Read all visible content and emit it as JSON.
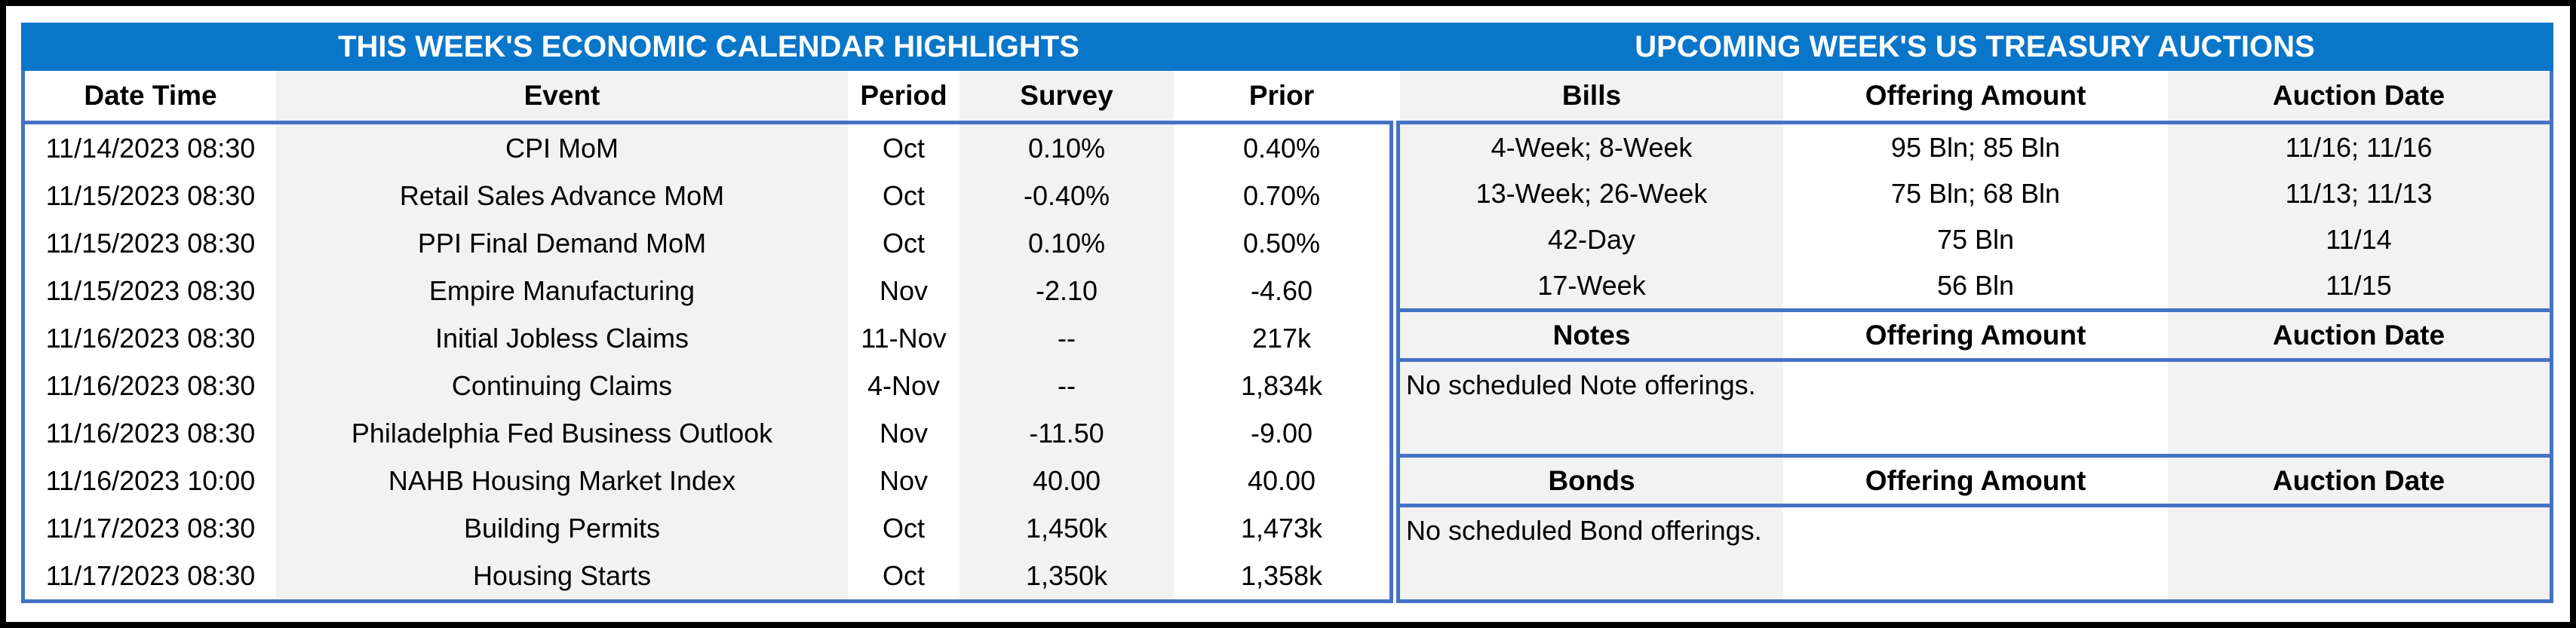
{
  "colors": {
    "title_band_blue": "#0a76c9",
    "table_border_blue": "#4472c4",
    "stripe_gray": "#f2f2f2",
    "frame_black": "#000000"
  },
  "left_table": {
    "title": "THIS WEEK'S ECONOMIC CALENDAR HIGHLIGHTS",
    "columns": [
      "Date Time",
      "Event",
      "Period",
      "Survey",
      "Prior"
    ],
    "rows": [
      [
        "11/14/2023 08:30",
        "CPI MoM",
        "Oct",
        "0.10%",
        "0.40%"
      ],
      [
        "11/15/2023 08:30",
        "Retail Sales Advance MoM",
        "Oct",
        "-0.40%",
        "0.70%"
      ],
      [
        "11/15/2023 08:30",
        "PPI Final Demand MoM",
        "Oct",
        "0.10%",
        "0.50%"
      ],
      [
        "11/15/2023 08:30",
        "Empire Manufacturing",
        "Nov",
        "-2.10",
        "-4.60"
      ],
      [
        "11/16/2023 08:30",
        "Initial Jobless Claims",
        "11-Nov",
        "--",
        "217k"
      ],
      [
        "11/16/2023 08:30",
        "Continuing Claims",
        "4-Nov",
        "--",
        "1,834k"
      ],
      [
        "11/16/2023 08:30",
        "Philadelphia Fed Business Outlook",
        "Nov",
        "-11.50",
        "-9.00"
      ],
      [
        "11/16/2023 10:00",
        "NAHB Housing Market Index",
        "Nov",
        "40.00",
        "40.00"
      ],
      [
        "11/17/2023 08:30",
        "Building Permits",
        "Oct",
        "1,450k",
        "1,473k"
      ],
      [
        "11/17/2023 08:30",
        "Housing Starts",
        "Oct",
        "1,350k",
        "1,358k"
      ]
    ]
  },
  "right_table": {
    "title": "UPCOMING WEEK'S US TREASURY AUCTIONS",
    "bills": {
      "columns": [
        "Bills",
        "Offering Amount",
        "Auction Date"
      ],
      "rows": [
        [
          "4-Week; 8-Week",
          "95 Bln; 85 Bln",
          "11/16; 11/16"
        ],
        [
          "13-Week; 26-Week",
          "75 Bln; 68 Bln",
          "11/13; 11/13"
        ],
        [
          "42-Day",
          "75 Bln",
          "11/14"
        ],
        [
          "17-Week",
          "56 Bln",
          "11/15"
        ]
      ]
    },
    "notes": {
      "columns": [
        "Notes",
        "Offering Amount",
        "Auction Date"
      ],
      "message": "No scheduled Note offerings."
    },
    "bonds": {
      "columns": [
        "Bonds",
        "Offering Amount",
        "Auction Date"
      ],
      "message": "No scheduled Bond offerings."
    }
  }
}
